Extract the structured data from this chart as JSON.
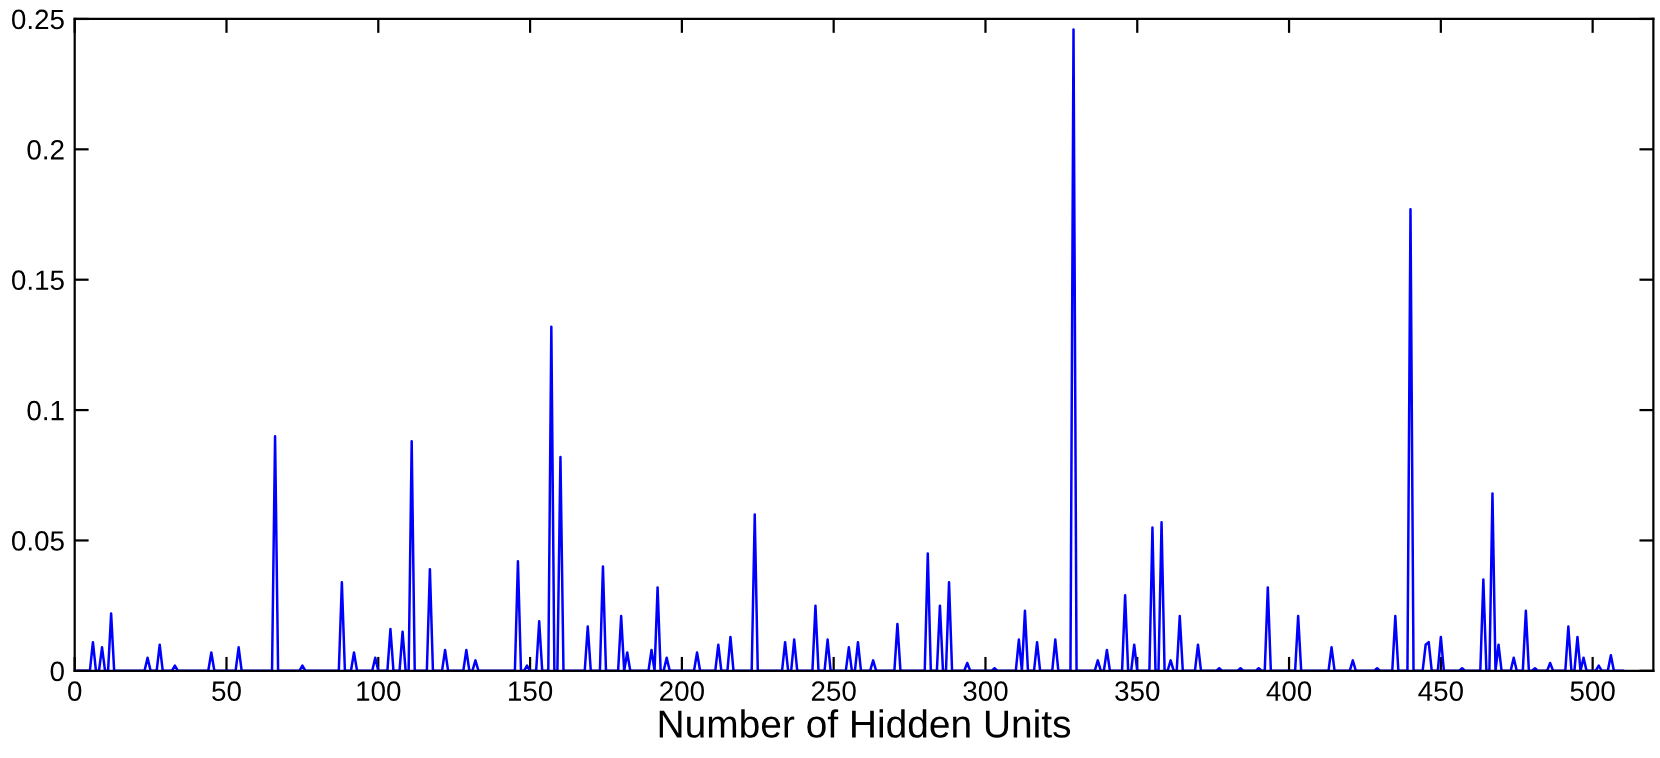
{
  "chart_data": {
    "type": "line",
    "xlabel": "Number of Hidden Units",
    "xlim": [
      0,
      520
    ],
    "xticks": [
      0,
      50,
      100,
      150,
      200,
      250,
      300,
      350,
      400,
      450,
      500
    ],
    "ylim": [
      0,
      0.25
    ],
    "yticks": [
      0,
      0.05,
      0.1,
      0.15,
      0.2,
      0.25
    ],
    "grid": false,
    "legend": false,
    "marker": "none",
    "line_style": "solid",
    "series": [
      {
        "color": "#0000ff",
        "x": [
          1,
          5,
          6,
          7,
          8,
          9,
          10,
          11,
          12,
          13,
          23,
          24,
          25,
          27,
          28,
          29,
          32,
          33,
          34,
          44,
          45,
          46,
          53,
          54,
          55,
          65,
          66,
          67,
          74,
          75,
          76,
          87,
          88,
          89,
          91,
          92,
          93,
          98,
          99,
          100,
          103,
          104,
          105,
          107,
          108,
          109,
          110,
          111,
          112,
          116,
          117,
          118,
          121,
          122,
          123,
          128,
          129,
          130,
          131,
          132,
          133,
          145,
          146,
          147,
          148,
          149,
          150,
          152,
          153,
          154,
          156,
          157,
          158,
          159,
          160,
          161,
          168,
          169,
          170,
          173,
          174,
          175,
          179,
          180,
          181,
          182,
          183,
          189,
          190,
          191,
          192,
          193,
          194,
          195,
          196,
          204,
          205,
          206,
          211,
          212,
          213,
          215,
          216,
          217,
          223,
          224,
          225,
          233,
          234,
          235,
          236,
          237,
          238,
          243,
          244,
          245,
          247,
          248,
          249,
          254,
          255,
          256,
          257,
          258,
          259,
          262,
          263,
          264,
          270,
          271,
          272,
          280,
          281,
          282,
          284,
          285,
          286,
          287,
          288,
          289,
          293,
          294,
          295,
          302,
          303,
          304,
          310,
          311,
          312,
          313,
          314,
          316,
          317,
          318,
          322,
          323,
          324,
          328,
          329,
          330,
          336,
          337,
          338,
          339,
          340,
          341,
          345,
          346,
          347,
          348,
          349,
          350,
          354,
          355,
          356,
          357,
          358,
          359,
          360,
          361,
          362,
          363,
          364,
          365,
          369,
          370,
          371,
          376,
          377,
          378,
          383,
          384,
          385,
          389,
          390,
          391,
          392,
          393,
          394,
          402,
          403,
          404,
          413,
          414,
          415,
          420,
          421,
          422,
          428,
          429,
          430,
          434,
          435,
          436,
          439,
          440,
          441,
          444,
          445,
          446,
          447,
          449,
          450,
          451,
          456,
          457,
          458,
          463,
          464,
          465,
          466,
          467,
          468,
          469,
          470,
          473,
          474,
          475,
          477,
          478,
          479,
          480,
          481,
          482,
          485,
          486,
          487,
          491,
          492,
          493,
          494,
          495,
          496,
          497,
          498,
          501,
          502,
          503,
          505,
          506,
          507,
          510
        ],
        "values": [
          0,
          0,
          0.011,
          0,
          0,
          0.009,
          0,
          0,
          0.022,
          0,
          0,
          0.005,
          0,
          0,
          0.01,
          0,
          0,
          0.002,
          0,
          0,
          0.007,
          0,
          0,
          0.009,
          0,
          0,
          0.09,
          0,
          0,
          0.002,
          0,
          0,
          0.034,
          0,
          0,
          0.007,
          0,
          0,
          0.005,
          0,
          0,
          0.016,
          0,
          0,
          0.015,
          0,
          0,
          0.088,
          0,
          0,
          0.039,
          0,
          0,
          0.008,
          0,
          0,
          0.008,
          0,
          0,
          0.004,
          0,
          0,
          0.042,
          0,
          0,
          0.002,
          0,
          0,
          0.019,
          0,
          0,
          0.132,
          0,
          0,
          0.082,
          0,
          0,
          0.017,
          0,
          0,
          0.04,
          0,
          0,
          0.021,
          0,
          0.007,
          0,
          0,
          0.008,
          0,
          0.032,
          0,
          0,
          0.005,
          0,
          0,
          0.007,
          0,
          0,
          0.01,
          0,
          0,
          0.013,
          0,
          0,
          0.06,
          0,
          0,
          0.011,
          0,
          0,
          0.012,
          0,
          0,
          0.025,
          0,
          0,
          0.012,
          0,
          0,
          0.009,
          0,
          0,
          0.011,
          0,
          0,
          0.004,
          0,
          0,
          0.018,
          0,
          0,
          0.045,
          0,
          0,
          0.025,
          0,
          0,
          0.034,
          0,
          0,
          0.003,
          0,
          0,
          0.001,
          0,
          0,
          0.012,
          0,
          0.023,
          0,
          0,
          0.011,
          0,
          0,
          0.012,
          0,
          0,
          0.246,
          0,
          0,
          0.004,
          0,
          0,
          0.008,
          0,
          0,
          0.029,
          0,
          0,
          0.01,
          0,
          0,
          0.055,
          0,
          0,
          0.057,
          0,
          0,
          0.004,
          0,
          0,
          0.021,
          0,
          0,
          0.01,
          0,
          0,
          0.001,
          0,
          0,
          0.001,
          0,
          0,
          0.001,
          0,
          0,
          0.032,
          0,
          0,
          0.021,
          0,
          0,
          0.009,
          0,
          0,
          0.004,
          0,
          0,
          0.001,
          0,
          0,
          0.021,
          0,
          0,
          0.177,
          0,
          0,
          0.01,
          0.011,
          0,
          0,
          0.013,
          0,
          0,
          0.001,
          0,
          0,
          0.035,
          0,
          0,
          0.068,
          0,
          0.01,
          0,
          0,
          0.005,
          0,
          0,
          0.023,
          0,
          0,
          0.001,
          0,
          0,
          0.003,
          0,
          0,
          0.017,
          0,
          0,
          0.013,
          0,
          0.005,
          0,
          0,
          0.002,
          0,
          0,
          0.006,
          0,
          0
        ]
      }
    ]
  }
}
